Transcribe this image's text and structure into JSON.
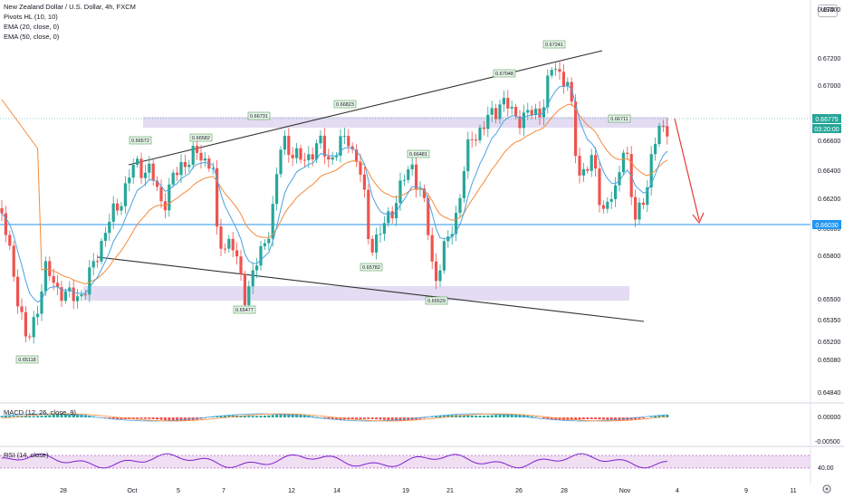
{
  "header": {
    "title": "New Zealand Dollar / U.S. Dollar, 4h, FXCM",
    "indicators": [
      "Pivots HL (10, 10)",
      "EMA (20, close, 0)",
      "EMA (50, close, 0)"
    ],
    "currency": "USD"
  },
  "chart_data": {
    "type": "candlestick",
    "price_axis": [
      "0.67400",
      "0.67200",
      "0.67000",
      "0.66600",
      "0.66400",
      "0.66200",
      "0.66000",
      "0.65800",
      "0.65500",
      "0.65350",
      "0.65200",
      "0.65080",
      "0.64840"
    ],
    "current_price": "0.66775",
    "countdown": "03:20:00",
    "level_price": "0.66030",
    "pivot_labels": [
      "0.66572",
      "0.66582",
      "0.66731",
      "0.66823",
      "0.67048",
      "0.67241",
      "0.66711",
      "0.66481",
      "0.65782",
      "0.65477",
      "0.65529",
      "0.65118"
    ],
    "time_axis": [
      "28",
      "Oct",
      "5",
      "7",
      "12",
      "14",
      "19",
      "21",
      "26",
      "28",
      "Nov",
      "4",
      "9",
      "11"
    ],
    "macd": {
      "label": "MACD (12, 26, close, 9)",
      "axis": [
        "0.00000",
        "-0.00500"
      ]
    },
    "rsi": {
      "label": "RSI (14, close)",
      "axis": [
        "40.00"
      ]
    },
    "colors": {
      "up": "#26a69a",
      "down": "#ef5350",
      "ema20": "#4aa3df",
      "ema50": "#f58a3a",
      "zone": "#d1c4e9",
      "level": "#2196f3",
      "arrow": "#e53935"
    }
  }
}
